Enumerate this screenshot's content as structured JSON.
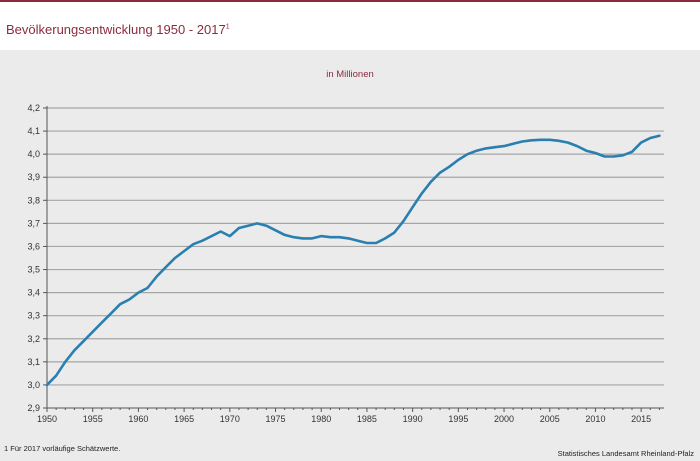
{
  "header": {
    "title": "Bevölkerungsentwicklung 1950 - 2017",
    "title_marker": "1"
  },
  "footer": {
    "footnote": "1 Für 2017 vorläufige Schätzwerte.",
    "source": "Statistisches Landesamt Rheinland-Pfalz"
  },
  "colors": {
    "accent": "#8b2c3e",
    "line": "#2a7fb0",
    "grid": "#a6a6a6",
    "background": "#ebebeb"
  },
  "chart_data": {
    "type": "line",
    "title": "",
    "subtitle": "in Millionen",
    "xlabel": "",
    "ylabel": "",
    "xlim": [
      1950,
      2017.5
    ],
    "ylim": [
      2.9,
      4.2
    ],
    "grid": true,
    "x_ticks": [
      1950,
      1955,
      1960,
      1965,
      1970,
      1975,
      1980,
      1985,
      1990,
      1995,
      2000,
      2005,
      2010,
      2015
    ],
    "y_ticks": [
      "2,9",
      "3,0",
      "3,1",
      "3,2",
      "3,3",
      "3,4",
      "3,5",
      "3,6",
      "3,7",
      "3,8",
      "3,9",
      "4,0",
      "4,1",
      "4,2"
    ],
    "series": [
      {
        "x": [
          1950,
          1951,
          1952,
          1953,
          1954,
          1955,
          1956,
          1957,
          1958,
          1959,
          1960,
          1961,
          1962,
          1963,
          1964,
          1965,
          1966,
          1967,
          1968,
          1969,
          1970,
          1971,
          1972,
          1973,
          1974,
          1975,
          1976,
          1977,
          1978,
          1979,
          1980,
          1981,
          1982,
          1983,
          1984,
          1985,
          1986,
          1987,
          1988,
          1989,
          1990,
          1991,
          1992,
          1993,
          1994,
          1995,
          1996,
          1997,
          1998,
          1999,
          2000,
          2001,
          2002,
          2003,
          2004,
          2005,
          2006,
          2007,
          2008,
          2009,
          2010,
          2011,
          2012,
          2013,
          2014,
          2015,
          2016,
          2017
        ],
        "y": [
          3.0,
          3.04,
          3.1,
          3.15,
          3.19,
          3.23,
          3.27,
          3.31,
          3.35,
          3.37,
          3.4,
          3.42,
          3.47,
          3.51,
          3.55,
          3.58,
          3.61,
          3.625,
          3.645,
          3.665,
          3.645,
          3.68,
          3.69,
          3.7,
          3.69,
          3.67,
          3.65,
          3.64,
          3.635,
          3.635,
          3.645,
          3.64,
          3.64,
          3.635,
          3.625,
          3.615,
          3.615,
          3.635,
          3.66,
          3.71,
          3.77,
          3.83,
          3.88,
          3.92,
          3.945,
          3.975,
          4.0,
          4.015,
          4.025,
          4.03,
          4.035,
          4.045,
          4.055,
          4.06,
          4.062,
          4.062,
          4.058,
          4.05,
          4.035,
          4.015,
          4.005,
          3.99,
          3.99,
          3.995,
          4.01,
          4.05,
          4.07,
          4.08
        ]
      }
    ]
  }
}
